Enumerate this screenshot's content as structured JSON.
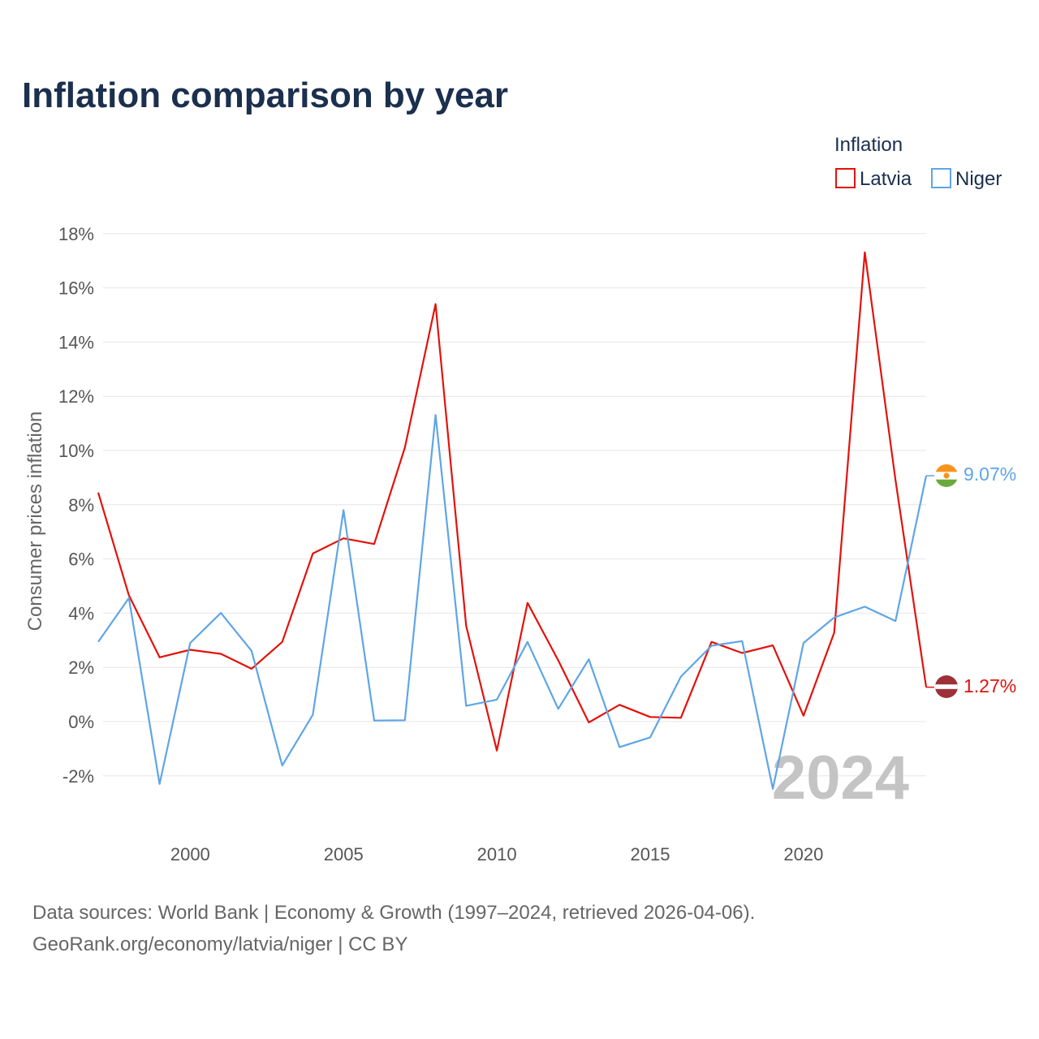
{
  "chart_data": {
    "type": "line",
    "title": "Inflation comparison by year",
    "legend_title": "Inflation",
    "ylabel": "Consumer prices inflation",
    "xlabel": "",
    "x": [
      1997,
      1998,
      1999,
      2000,
      2001,
      2002,
      2003,
      2004,
      2005,
      2006,
      2007,
      2008,
      2009,
      2010,
      2011,
      2012,
      2013,
      2014,
      2015,
      2016,
      2017,
      2018,
      2019,
      2020,
      2021,
      2022,
      2023,
      2024
    ],
    "xlim": [
      1997,
      2024
    ],
    "ylim": [
      -4,
      18
    ],
    "x_ticks": [
      2000,
      2005,
      2010,
      2015,
      2020
    ],
    "x_tick_labels": [
      "2000",
      "2005",
      "2010",
      "2015",
      "2020"
    ],
    "y_ticks": [
      -2,
      0,
      2,
      4,
      6,
      8,
      10,
      12,
      14,
      16,
      18
    ],
    "y_tick_labels": [
      "-2%",
      "0%",
      "2%",
      "4%",
      "6%",
      "8%",
      "10%",
      "12%",
      "14%",
      "16%",
      "18%"
    ],
    "grid": true,
    "legend_position": "top-right",
    "series": [
      {
        "name": "Latvia",
        "color": "#e3120b",
        "values": [
          8.45,
          4.66,
          2.37,
          2.65,
          2.5,
          1.95,
          2.94,
          6.2,
          6.76,
          6.55,
          10.11,
          15.4,
          3.53,
          -1.07,
          4.38,
          2.26,
          -0.03,
          0.62,
          0.17,
          0.14,
          2.94,
          2.53,
          2.81,
          0.22,
          3.28,
          17.31,
          8.91,
          1.27
        ],
        "end_label": "1.27%",
        "flag": "latvia-flag-icon"
      },
      {
        "name": "Niger",
        "color": "#5fa5e6",
        "values": [
          2.94,
          4.56,
          -2.3,
          2.9,
          4.01,
          2.61,
          -1.62,
          0.25,
          7.8,
          0.04,
          0.05,
          11.31,
          0.58,
          0.81,
          2.94,
          0.47,
          2.3,
          -0.94,
          -0.58,
          1.66,
          2.8,
          2.97,
          -2.48,
          2.9,
          3.84,
          4.24,
          3.71,
          9.07
        ],
        "end_label": "9.07%",
        "flag": "niger-flag-icon"
      }
    ]
  },
  "watermark_year": "2024",
  "source_line1": "Data sources: World Bank | Economy & Growth (1997–2024, retrieved 2026-04-06).",
  "source_line2": "GeoRank.org/economy/latvia/niger | CC BY"
}
